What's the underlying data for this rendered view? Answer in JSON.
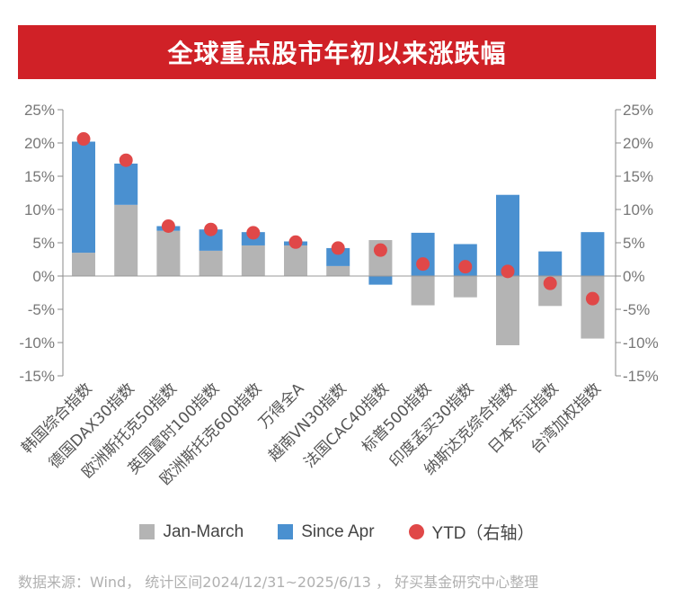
{
  "title": "全球重点股市年初以来涨跌幅",
  "source_note": "数据来源：Wind， 统计区间2024/12/31~2025/6/13 ， 好买基金研究中心整理",
  "colors": {
    "title_bg": "#d02127",
    "jan_march": "#b4b4b4",
    "since_apr": "#4a90d0",
    "ytd": "#e04848"
  },
  "legend": {
    "jan_march": "Jan-March",
    "since_apr": "Since Apr",
    "ytd": "YTD（右轴）"
  },
  "chart_data": {
    "type": "bar",
    "stacked": true,
    "title": "全球重点股市年初以来涨跌幅",
    "categories": [
      "韩国综合指数",
      "德国DAX30指数",
      "欧洲斯托克50指数",
      "英国富时100指数",
      "欧洲斯托克600指数",
      "万得全A",
      "越南VN30指数",
      "法国CAC40指数",
      "标普500指数",
      "印度孟买30指数",
      "纳斯达克综合指数",
      "日本东证指数",
      "台湾加权指数"
    ],
    "series": [
      {
        "name": "Jan-March",
        "type": "bar",
        "axis": "left",
        "values": [
          3.5,
          10.7,
          6.8,
          3.8,
          4.6,
          4.6,
          1.5,
          5.4,
          -4.4,
          -3.2,
          -10.4,
          -4.5,
          -9.4
        ]
      },
      {
        "name": "Since Apr",
        "type": "bar",
        "axis": "left",
        "values": [
          16.7,
          6.2,
          0.7,
          3.2,
          2.0,
          0.6,
          2.7,
          -1.3,
          6.5,
          4.8,
          12.2,
          3.7,
          6.6
        ]
      },
      {
        "name": "YTD（右轴）",
        "type": "scatter",
        "axis": "right",
        "values": [
          20.6,
          17.4,
          7.5,
          7.0,
          6.5,
          5.1,
          4.2,
          3.9,
          1.8,
          1.4,
          0.7,
          -1.1,
          -3.4
        ]
      }
    ],
    "ylim": [
      -15,
      25
    ],
    "yticks": [
      -15,
      -10,
      -5,
      0,
      5,
      10,
      15,
      20,
      25
    ],
    "ytick_labels": [
      "-15%",
      "-10%",
      "-5%",
      "0%",
      "5%",
      "10%",
      "15%",
      "20%",
      "25%"
    ],
    "y2lim": [
      -15,
      25
    ],
    "y2ticks": [
      -15,
      -10,
      -5,
      0,
      5,
      10,
      15,
      20,
      25
    ],
    "y2tick_labels": [
      "-15%",
      "-10%",
      "-5%",
      "0%",
      "5%",
      "10%",
      "15%",
      "20%",
      "25%"
    ],
    "grid": false,
    "legend_position": "bottom"
  }
}
